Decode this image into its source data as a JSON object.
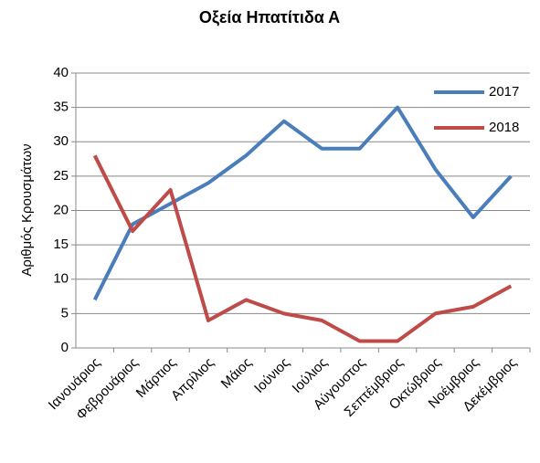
{
  "chart_data": {
    "type": "line",
    "title": "Οξεία Ηπατίτιδα Α",
    "y_label": "Αριθμός Κρουσμάτων",
    "categories": [
      "Ιανουάριος",
      "Φεβρουάριος",
      "Μάρτιος",
      "Απρίλιος",
      "Μάιος",
      "Ιούνιος",
      "Ιούλιος",
      "Αύγουστος",
      "Σεπτέμβριος",
      "Οκτώβριος",
      "Νοέμβριος",
      "Δεκέμβριος"
    ],
    "series": [
      {
        "name": "2017",
        "color": "#4a7ebb",
        "values": [
          7,
          18,
          21,
          24,
          28,
          33,
          29,
          29,
          35,
          26,
          19,
          25
        ]
      },
      {
        "name": "2018",
        "color": "#be4b48",
        "values": [
          28,
          17,
          23,
          4,
          7,
          5,
          4,
          1,
          1,
          5,
          6,
          9
        ]
      }
    ],
    "ylim": [
      0,
      40
    ],
    "yticks": [
      0,
      5,
      10,
      15,
      20,
      25,
      30,
      35,
      40
    ],
    "grid": true,
    "legend": "upper right"
  }
}
